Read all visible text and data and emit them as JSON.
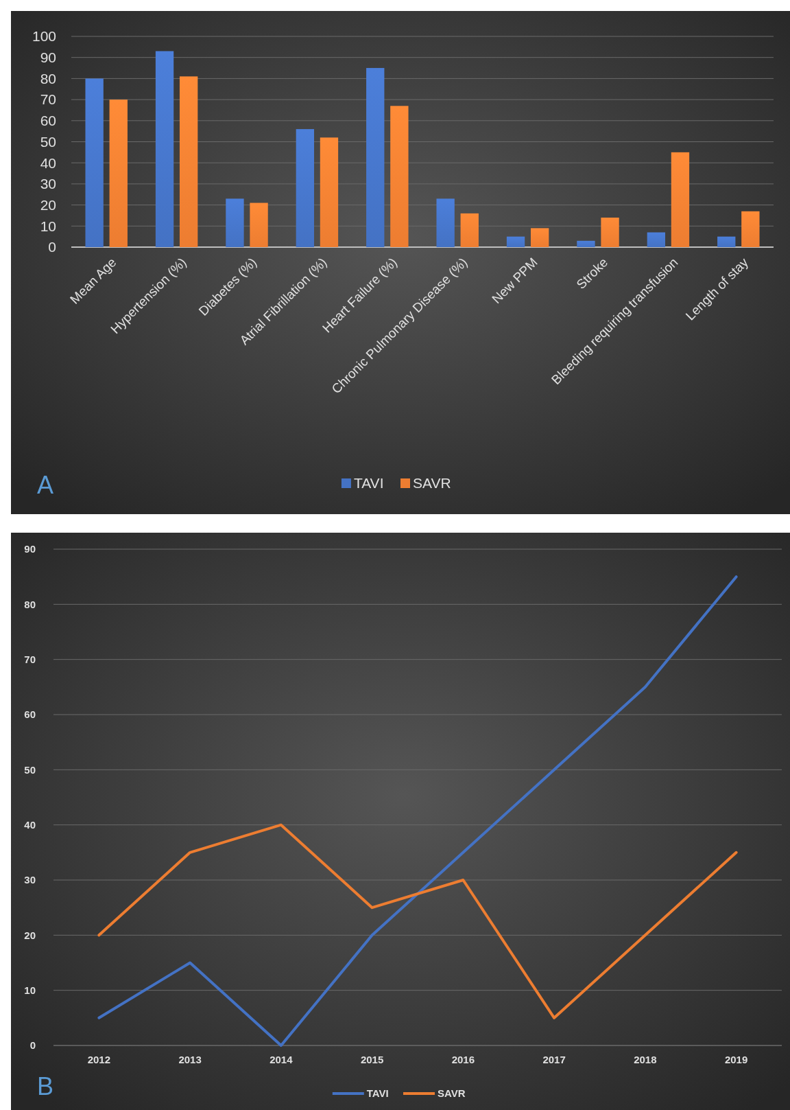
{
  "chart_data": [
    {
      "type": "bar",
      "categories": [
        "Mean Age",
        "Hypertension (%)",
        "Diabetes (%)",
        "Atrial Fibrillation (%)",
        "Heart Failure (%)",
        "Chronic Pulmonary Disease (%)",
        "New PPM",
        "Stroke",
        "Bleeding requiring transfusion",
        "Length of stay"
      ],
      "series": [
        {
          "name": "TAVI",
          "color": "#4472c4",
          "values": [
            80,
            93,
            23,
            56,
            85,
            23,
            5,
            3,
            7,
            5
          ]
        },
        {
          "name": "SAVR",
          "color": "#ed7d31",
          "values": [
            70,
            81,
            21,
            52,
            67,
            16,
            9,
            14,
            45,
            17
          ]
        }
      ],
      "ylim": [
        0,
        100
      ],
      "yticks": [
        0,
        10,
        20,
        30,
        40,
        50,
        60,
        70,
        80,
        90,
        100
      ],
      "grid": "y",
      "legend": "bottom",
      "annotations": [
        "A"
      ]
    },
    {
      "type": "line",
      "categories": [
        "2012",
        "2013",
        "2014",
        "2015",
        "2016",
        "2017",
        "2018",
        "2019"
      ],
      "series": [
        {
          "name": "TAVI",
          "color": "#4472c4",
          "values": [
            5,
            15,
            0,
            20,
            35,
            50,
            65,
            85
          ]
        },
        {
          "name": "SAVR",
          "color": "#ed7d31",
          "values": [
            20,
            35,
            40,
            25,
            30,
            5,
            20,
            35
          ]
        }
      ],
      "ylim": [
        0,
        90
      ],
      "yticks": [
        0,
        10,
        20,
        30,
        40,
        50,
        60,
        70,
        80,
        90
      ],
      "grid": "y",
      "legend": "bottom",
      "marker": "none",
      "line_style": "solid",
      "annotations": [
        "B"
      ]
    }
  ]
}
